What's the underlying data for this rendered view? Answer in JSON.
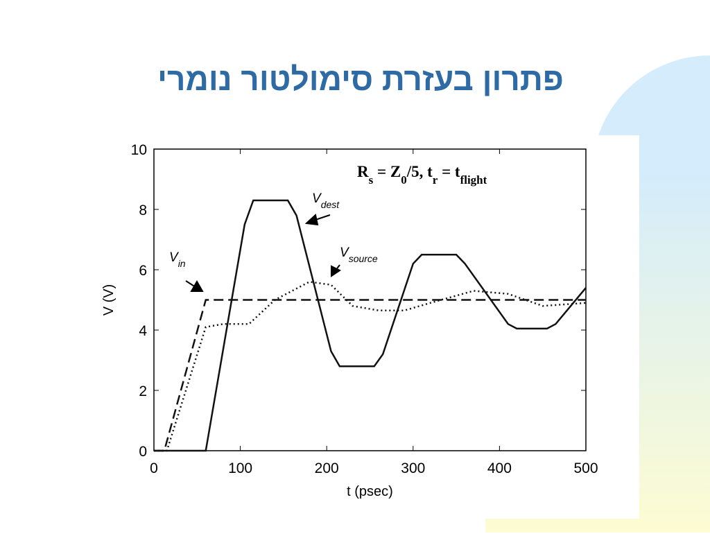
{
  "slide": {
    "title": "פתרון בעזרת סימולטור נומרי"
  },
  "chart_data": {
    "type": "line",
    "xlabel": "t (psec)",
    "ylabel": "V (V)",
    "formula": [
      {
        "text": "R"
      },
      {
        "text": "s",
        "sub": true
      },
      {
        "text": " = Z"
      },
      {
        "text": "0",
        "sub": true
      },
      {
        "text": "/5,  t"
      },
      {
        "text": "r",
        "sub": true
      },
      {
        "text": " = t"
      },
      {
        "text": "flight",
        "sub": true
      }
    ],
    "xlim": [
      0,
      500
    ],
    "ylim": [
      0,
      10
    ],
    "xticks": [
      0,
      100,
      200,
      300,
      400,
      500
    ],
    "yticks": [
      0,
      2,
      4,
      6,
      8,
      10
    ],
    "series": [
      {
        "label": "V",
        "label_sub": "in",
        "color": "#111111",
        "dash": "14 7",
        "x": [
          0,
          12,
          60,
          500
        ],
        "values": [
          0,
          0,
          5,
          5
        ]
      },
      {
        "label": "V",
        "label_sub": "dest",
        "color": "#111111",
        "dash": "none",
        "x": [
          0,
          60,
          105,
          115,
          155,
          165,
          205,
          215,
          255,
          265,
          300,
          310,
          350,
          360,
          410,
          420,
          455,
          465,
          500
        ],
        "values": [
          0,
          0,
          7.5,
          8.3,
          8.3,
          7.8,
          3.3,
          2.8,
          2.8,
          3.2,
          6.2,
          6.5,
          6.5,
          6.2,
          4.2,
          4.05,
          4.05,
          4.2,
          5.4
        ]
      },
      {
        "label": "V",
        "label_sub": "source",
        "color": "#111111",
        "dash": "2 4",
        "x": [
          0,
          15,
          60,
          80,
          110,
          140,
          180,
          205,
          230,
          260,
          290,
          320,
          370,
          410,
          450,
          500
        ],
        "values": [
          0,
          0,
          4.1,
          4.2,
          4.2,
          5.0,
          5.6,
          5.5,
          4.8,
          4.65,
          4.65,
          4.9,
          5.3,
          5.2,
          4.8,
          4.9
        ]
      }
    ]
  }
}
